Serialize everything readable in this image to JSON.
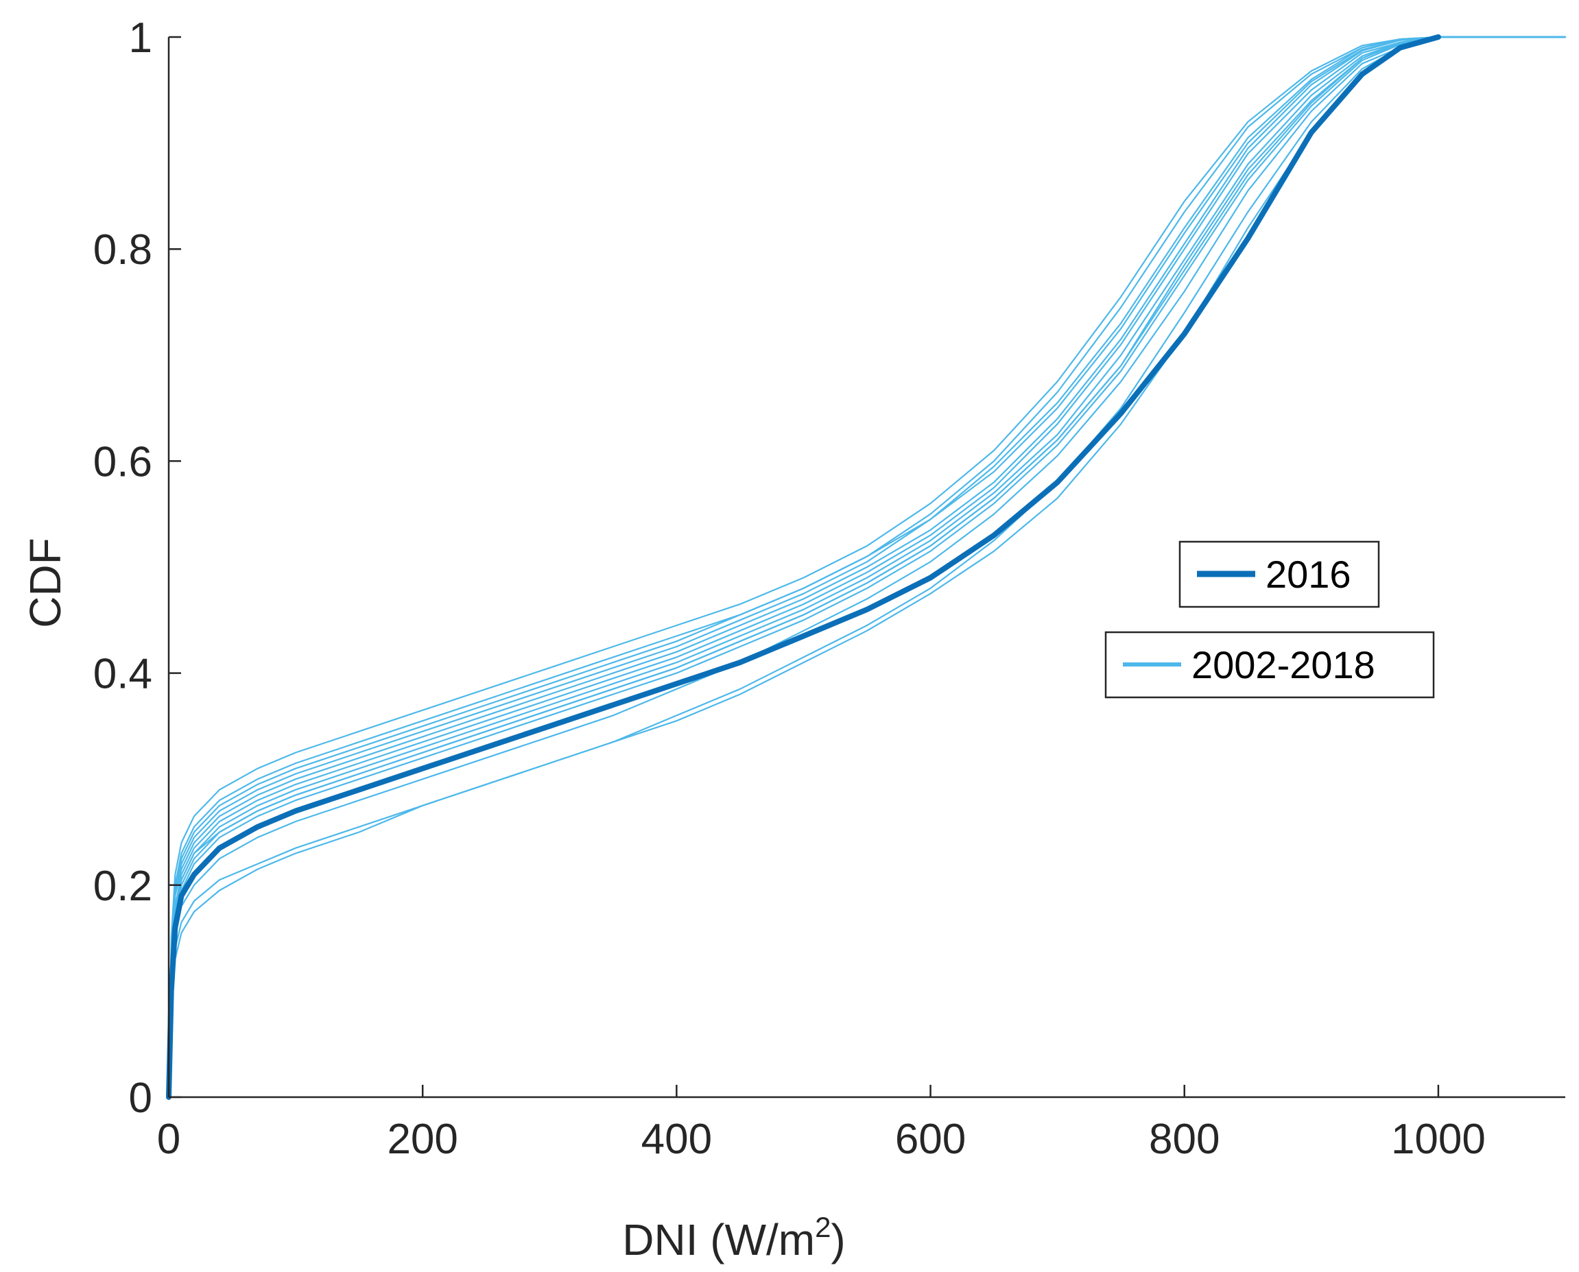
{
  "chart_data": {
    "type": "line",
    "title": "",
    "xlabel": "DNI (W/m",
    "xlabel_sup": "2",
    "xlabel_close": ")",
    "ylabel": "CDF",
    "xlim": [
      0,
      1100
    ],
    "ylim": [
      0,
      1
    ],
    "xticks": [
      0,
      200,
      400,
      600,
      800,
      1000
    ],
    "xtick_labels": [
      "0",
      "200",
      "400",
      "600",
      "800",
      "1000"
    ],
    "yticks": [
      0,
      0.2,
      0.4,
      0.6,
      0.8,
      1
    ],
    "ytick_labels": [
      "0",
      "0.2",
      "0.4",
      "0.6",
      "0.8",
      "1"
    ],
    "colors": {
      "highlight": "#0b6fb8",
      "ensemble": "#4db8ea",
      "axis": "#262626"
    },
    "legend": [
      {
        "label": "2016",
        "series": "2016"
      },
      {
        "label": "2002-2018",
        "series": "2002-2018"
      }
    ],
    "x": [
      0,
      2,
      5,
      10,
      20,
      40,
      70,
      100,
      150,
      200,
      250,
      300,
      350,
      400,
      450,
      500,
      550,
      600,
      650,
      700,
      750,
      800,
      850,
      900,
      940,
      970,
      1000
    ],
    "series": [
      {
        "name": "2016",
        "highlight": true,
        "values": [
          0.0,
          0.1,
          0.16,
          0.19,
          0.21,
          0.235,
          0.255,
          0.27,
          0.29,
          0.31,
          0.33,
          0.35,
          0.37,
          0.39,
          0.41,
          0.435,
          0.46,
          0.49,
          0.53,
          0.58,
          0.645,
          0.72,
          0.81,
          0.91,
          0.965,
          0.99,
          1.0
        ]
      },
      {
        "name": "2002-2018",
        "values": [
          0.0,
          0.12,
          0.18,
          0.21,
          0.235,
          0.26,
          0.28,
          0.295,
          0.315,
          0.335,
          0.355,
          0.375,
          0.395,
          0.415,
          0.44,
          0.465,
          0.495,
          0.53,
          0.575,
          0.635,
          0.71,
          0.8,
          0.89,
          0.95,
          0.985,
          0.995,
          1.0
        ]
      },
      {
        "name": "2002-2018",
        "values": [
          0.0,
          0.13,
          0.19,
          0.22,
          0.245,
          0.27,
          0.29,
          0.305,
          0.325,
          0.345,
          0.365,
          0.385,
          0.405,
          0.425,
          0.45,
          0.475,
          0.505,
          0.545,
          0.595,
          0.655,
          0.73,
          0.82,
          0.905,
          0.96,
          0.99,
          0.998,
          1.0
        ]
      },
      {
        "name": "2002-2018",
        "values": [
          0.0,
          0.11,
          0.17,
          0.2,
          0.225,
          0.25,
          0.27,
          0.285,
          0.305,
          0.325,
          0.345,
          0.365,
          0.385,
          0.405,
          0.43,
          0.455,
          0.485,
          0.52,
          0.565,
          0.62,
          0.69,
          0.785,
          0.875,
          0.94,
          0.98,
          0.995,
          1.0
        ]
      },
      {
        "name": "2002-2018",
        "values": [
          0.0,
          0.14,
          0.2,
          0.23,
          0.255,
          0.28,
          0.3,
          0.315,
          0.335,
          0.355,
          0.375,
          0.395,
          0.415,
          0.435,
          0.455,
          0.48,
          0.51,
          0.55,
          0.6,
          0.665,
          0.745,
          0.835,
          0.915,
          0.965,
          0.99,
          0.998,
          1.0
        ]
      },
      {
        "name": "2002-2018",
        "values": [
          0.0,
          0.1,
          0.15,
          0.18,
          0.2,
          0.225,
          0.245,
          0.26,
          0.28,
          0.3,
          0.32,
          0.34,
          0.36,
          0.385,
          0.41,
          0.44,
          0.47,
          0.505,
          0.55,
          0.605,
          0.675,
          0.76,
          0.855,
          0.93,
          0.975,
          0.99,
          1.0
        ]
      },
      {
        "name": "2002-2018",
        "values": [
          0.0,
          0.12,
          0.175,
          0.205,
          0.23,
          0.255,
          0.275,
          0.29,
          0.31,
          0.33,
          0.35,
          0.37,
          0.39,
          0.41,
          0.435,
          0.46,
          0.49,
          0.525,
          0.57,
          0.625,
          0.7,
          0.79,
          0.88,
          0.945,
          0.982,
          0.995,
          1.0
        ]
      },
      {
        "name": "2002-2018",
        "values": [
          0.0,
          0.09,
          0.13,
          0.155,
          0.175,
          0.195,
          0.215,
          0.23,
          0.25,
          0.275,
          0.295,
          0.315,
          0.335,
          0.355,
          0.38,
          0.41,
          0.44,
          0.475,
          0.515,
          0.565,
          0.635,
          0.72,
          0.82,
          0.91,
          0.965,
          0.988,
          1.0
        ]
      },
      {
        "name": "2002-2018",
        "values": [
          0.0,
          0.1,
          0.14,
          0.165,
          0.185,
          0.205,
          0.22,
          0.235,
          0.255,
          0.275,
          0.295,
          0.315,
          0.335,
          0.36,
          0.385,
          0.415,
          0.445,
          0.48,
          0.525,
          0.58,
          0.65,
          0.74,
          0.835,
          0.92,
          0.97,
          0.99,
          1.0
        ]
      },
      {
        "name": "2002-2018",
        "values": [
          0.0,
          0.13,
          0.19,
          0.215,
          0.24,
          0.265,
          0.285,
          0.3,
          0.32,
          0.34,
          0.36,
          0.38,
          0.4,
          0.42,
          0.445,
          0.47,
          0.5,
          0.535,
          0.58,
          0.64,
          0.715,
          0.805,
          0.895,
          0.955,
          0.987,
          0.997,
          1.0
        ]
      },
      {
        "name": "2002-2018",
        "values": [
          0.0,
          0.11,
          0.165,
          0.195,
          0.22,
          0.245,
          0.265,
          0.28,
          0.3,
          0.32,
          0.34,
          0.36,
          0.38,
          0.4,
          0.425,
          0.45,
          0.48,
          0.515,
          0.56,
          0.615,
          0.685,
          0.775,
          0.865,
          0.935,
          0.978,
          0.993,
          1.0
        ]
      },
      {
        "name": "2002-2018",
        "values": [
          0.0,
          0.15,
          0.21,
          0.24,
          0.265,
          0.29,
          0.31,
          0.325,
          0.345,
          0.365,
          0.385,
          0.405,
          0.425,
          0.445,
          0.465,
          0.49,
          0.52,
          0.56,
          0.61,
          0.675,
          0.755,
          0.845,
          0.92,
          0.968,
          0.992,
          0.998,
          1.0
        ]
      },
      {
        "name": "2002-2018",
        "values": [
          0.0,
          0.12,
          0.18,
          0.205,
          0.23,
          0.25,
          0.27,
          0.285,
          0.305,
          0.325,
          0.345,
          0.365,
          0.385,
          0.405,
          0.43,
          0.455,
          0.485,
          0.52,
          0.565,
          0.62,
          0.69,
          0.78,
          0.87,
          0.938,
          0.98,
          0.994,
          1.0
        ]
      },
      {
        "name": "2002-2018",
        "values": [
          0.0,
          0.14,
          0.195,
          0.225,
          0.25,
          0.275,
          0.295,
          0.31,
          0.33,
          0.35,
          0.37,
          0.39,
          0.41,
          0.43,
          0.455,
          0.48,
          0.51,
          0.545,
          0.59,
          0.65,
          0.725,
          0.815,
          0.9,
          0.958,
          0.988,
          0.997,
          1.0
        ]
      }
    ]
  }
}
